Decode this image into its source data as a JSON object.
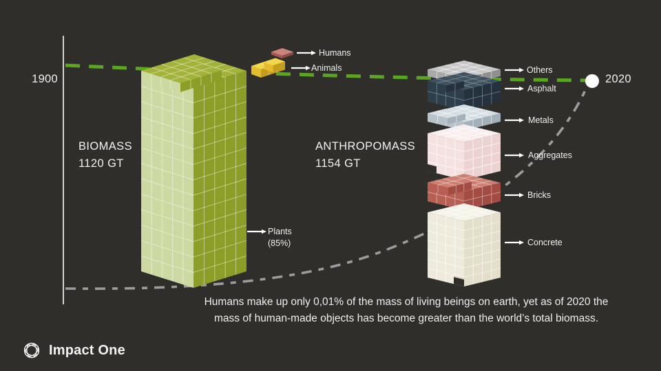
{
  "slide": {
    "year_start": "1900",
    "year_end": "2020"
  },
  "biomass": {
    "title": "BIOMASS",
    "total": "1120 GT",
    "labels": {
      "humans": "Humans",
      "animals": "Animals",
      "plants": "Plants",
      "plants_share": "(85%)"
    }
  },
  "anthropomass": {
    "title": "ANTHROPOMASS",
    "total": "1154 GT",
    "layers": [
      "Others",
      "Asphalt",
      "Metals",
      "Aggregates",
      "Bricks",
      "Concrete"
    ]
  },
  "caption": {
    "line1": "Humans make up only 0,01% of the mass of living beings on earth, yet as of 2020 the",
    "line2": "mass of human-made objects has become greater than the world’s total biomass."
  },
  "logo": {
    "text": "Impact One"
  },
  "colors": {
    "background": "#2f2e2b",
    "axis": "#ffffff",
    "green_line": "#57a81f",
    "gray_line": "#9c9c9c",
    "dot": "#ffffff",
    "pointer": "#ffffff",
    "text": "#f0f0f0",
    "blocks": {
      "biomass": {
        "top": "#a3b238",
        "left": "#cdd9a2",
        "right": "#8c9e27",
        "grid": "rgba(255,255,255,0.45)"
      },
      "humans": {
        "top": "#cc837d",
        "left": "#a85a54",
        "right": "#8f4d47",
        "grid": "rgba(255,255,255,0)"
      },
      "animals": {
        "top": "#f2d74d",
        "left": "#e3bd2e",
        "right": "#c69e1e",
        "grid": "rgba(255,255,255,0.35)"
      },
      "others": {
        "top": "#c7c7c7",
        "left": "#a9a9a9",
        "right": "#8f8f8f",
        "grid": "rgba(255,255,255,0.55)"
      },
      "asphalt": {
        "top": "#41525f",
        "left": "#2e3f4c",
        "right": "#25323d",
        "grid": "rgba(165,185,200,0.45)"
      },
      "metals": {
        "top": "#d5dee3",
        "left": "#b7c3cb",
        "right": "#a3b1bb",
        "grid": "rgba(255,255,255,0.6)"
      },
      "aggregates": {
        "top": "#f9eeee",
        "left": "#f6e1e1",
        "right": "#edd2d2",
        "grid": "rgba(255,255,255,0.7)"
      },
      "bricks": {
        "top": "#cd7f72",
        "left": "#b85f54",
        "right": "#a24c43",
        "grid": "rgba(255,255,255,0.4)"
      },
      "concrete": {
        "top": "#f5f3e7",
        "left": "#efebdc",
        "right": "#e3dfcb",
        "grid": "rgba(255,255,255,0.6)"
      }
    }
  },
  "chart_data": {
    "type": "bar",
    "title": "",
    "categories": [
      "BIOMASS",
      "ANTHROPOMASS"
    ],
    "values": [
      1120,
      1154
    ],
    "unit": "GT",
    "series_components": {
      "BIOMASS": [
        {
          "label": "Plants",
          "share": "85%"
        },
        {
          "label": "Animals"
        },
        {
          "label": "Humans",
          "share_of_living_mass": "0,01%"
        }
      ],
      "ANTHROPOMASS": [
        {
          "label": "Others"
        },
        {
          "label": "Asphalt"
        },
        {
          "label": "Metals"
        },
        {
          "label": "Aggregates"
        },
        {
          "label": "Bricks"
        },
        {
          "label": "Concrete"
        }
      ]
    },
    "timeline": {
      "start": "1900",
      "end": "2020"
    },
    "annotation": "Humans make up only 0,01% of the mass of living beings on earth, yet as of 2020 the mass of human-made objects has become greater than the world’s total biomass."
  }
}
